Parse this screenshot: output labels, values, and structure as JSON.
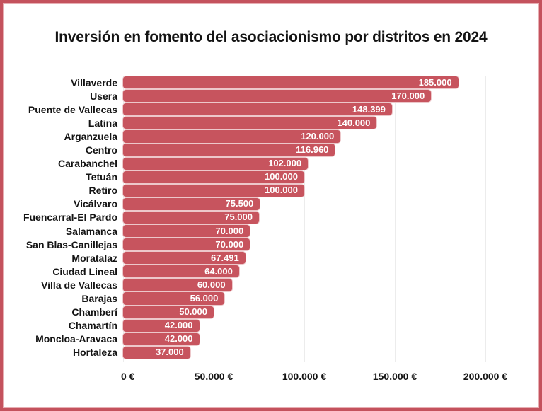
{
  "title": "Inversión en fomento del asociacionismo por distritos en 2024",
  "colors": {
    "bar": "#c7545e",
    "frame_border": "#c4525d",
    "frame_inner_line": "#e7aeb3",
    "gridline": "#ececec",
    "text": "#141414",
    "bar_value_text": "#ffffff"
  },
  "chart_data": {
    "type": "bar",
    "orientation": "horizontal",
    "title": "Inversión en fomento del asociacionismo por distritos en 2024",
    "xlabel": "",
    "ylabel": "",
    "grid": true,
    "xlim": [
      0,
      200000
    ],
    "unit": "€",
    "categories": [
      "Villaverde",
      "Usera",
      "Puente de Vallecas",
      "Latina",
      "Arganzuela",
      "Centro",
      "Carabanchel",
      "Tetuán",
      "Retiro",
      "Vicálvaro",
      "Fuencarral-El Pardo",
      "Salamanca",
      "San Blas-Canillejas",
      "Moratalaz",
      "Ciudad Lineal",
      "Villa de Vallecas",
      "Barajas",
      "Chamberí",
      "Chamartín",
      "Moncloa-Aravaca",
      "Hortaleza"
    ],
    "values": [
      185000,
      170000,
      148399,
      140000,
      120000,
      116960,
      102000,
      100000,
      100000,
      75500,
      75000,
      70000,
      70000,
      67491,
      64000,
      60000,
      56000,
      50000,
      42000,
      42000,
      37000
    ],
    "value_labels": [
      "185.000",
      "170.000",
      "148.399",
      "140.000",
      "120.000",
      "116.960",
      "102.000",
      "100.000",
      "100.000",
      "75.500",
      "75.000",
      "70.000",
      "70.000",
      "67.491",
      "64.000",
      "60.000",
      "56.000",
      "50.000",
      "42.000",
      "42.000",
      "37.000"
    ],
    "tick_values": [
      0,
      50000,
      100000,
      150000,
      200000
    ],
    "tick_labels": [
      "0 €",
      "50.000 €",
      "100.000 €",
      "150.000 €",
      "200.000 €"
    ]
  }
}
